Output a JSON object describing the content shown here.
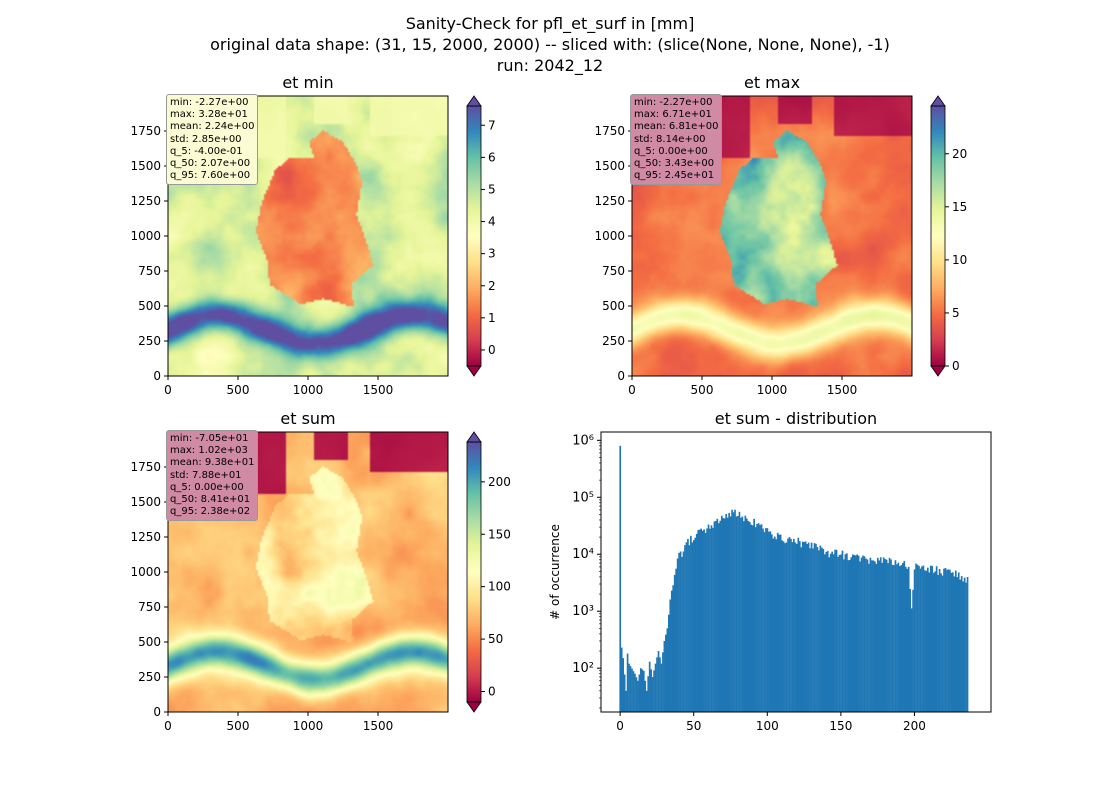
{
  "suptitle": {
    "line1": "Sanity-Check for pfl_et_surf in [mm]",
    "line2": "original data shape: (31, 15, 2000, 2000) -- sliced with: (slice(None, None, None), -1)",
    "line3": "run: 2042_12"
  },
  "colors": {
    "hist_bar": "#1f77b4",
    "stat_box_light": "#fbfbd4",
    "stat_box_pink": "#d08aa3",
    "cmap_spectral": [
      "#9e0142",
      "#d53e4f",
      "#f46d43",
      "#fdae61",
      "#fee08b",
      "#ffffbf",
      "#e6f598",
      "#abdda4",
      "#66c2a5",
      "#3288bd",
      "#5e4fa2"
    ]
  },
  "chart_data": [
    {
      "type": "heatmap",
      "title": "et min",
      "x_ticks": [
        "0",
        "500",
        "1000",
        "1500"
      ],
      "y_ticks": [
        "0",
        "250",
        "500",
        "750",
        "1000",
        "1250",
        "1500",
        "1750"
      ],
      "xlim": [
        0,
        2000
      ],
      "ylim": [
        0,
        2000
      ],
      "colorbar": {
        "ticks": [
          "0",
          "1",
          "2",
          "3",
          "4",
          "5",
          "6",
          "7"
        ],
        "range": [
          -0.5,
          7.6
        ],
        "extend": "both",
        "cmap": "Spectral"
      },
      "stats": [
        "min: -2.27e+00",
        "max: 3.28e+01",
        "mean: 2.24e+00",
        "std: 2.85e+00",
        "q_5: -4.00e-01",
        "q_50: 2.07e+00",
        "q_95: 7.60e+00"
      ]
    },
    {
      "type": "heatmap",
      "title": "et max",
      "x_ticks": [
        "0",
        "500",
        "1000",
        "1500"
      ],
      "y_ticks": [
        "0",
        "250",
        "500",
        "750",
        "1000",
        "1250",
        "1500",
        "1750"
      ],
      "xlim": [
        0,
        2000
      ],
      "ylim": [
        0,
        2000
      ],
      "colorbar": {
        "ticks": [
          "0",
          "5",
          "10",
          "15",
          "20"
        ],
        "range": [
          0,
          24.5
        ],
        "extend": "both",
        "cmap": "Spectral"
      },
      "stats": [
        "min: -2.27e+00",
        "max: 6.71e+01",
        "mean: 6.81e+00",
        "std: 8.14e+00",
        "q_5: 0.00e+00",
        "q_50: 3.43e+00",
        "q_95: 2.45e+01"
      ]
    },
    {
      "type": "heatmap",
      "title": "et sum",
      "x_ticks": [
        "0",
        "500",
        "1000",
        "1500"
      ],
      "y_ticks": [
        "0",
        "250",
        "500",
        "750",
        "1000",
        "1250",
        "1500",
        "1750"
      ],
      "xlim": [
        0,
        2000
      ],
      "ylim": [
        0,
        2000
      ],
      "colorbar": {
        "ticks": [
          "0",
          "50",
          "100",
          "150",
          "200"
        ],
        "range": [
          -10,
          238
        ],
        "extend": "both",
        "cmap": "Spectral"
      },
      "stats": [
        "min: -7.05e+01",
        "max: 1.02e+03",
        "mean: 9.38e+01",
        "std: 7.88e+01",
        "q_5: 0.00e+00",
        "q_50: 8.41e+01",
        "q_95: 2.38e+02"
      ]
    },
    {
      "type": "bar",
      "title": "et sum - distribution",
      "ylabel": "# of occurrence",
      "xlabel": "",
      "yscale": "log",
      "x_ticks": [
        "0",
        "50",
        "100",
        "150",
        "200"
      ],
      "y_ticks": [
        "10²",
        "10³",
        "10⁴",
        "10⁵",
        "10⁶"
      ],
      "xlim": [
        -13,
        252
      ],
      "ylim": [
        17,
        1400000
      ],
      "bin_width": 1,
      "keypoints": [
        [
          0,
          800000
        ],
        [
          1,
          230
        ],
        [
          2,
          150
        ],
        [
          4,
          40
        ],
        [
          5,
          180
        ],
        [
          6,
          120
        ],
        [
          10,
          80
        ],
        [
          12,
          60
        ],
        [
          14,
          100
        ],
        [
          16,
          90
        ],
        [
          18,
          40
        ],
        [
          20,
          130
        ],
        [
          22,
          70
        ],
        [
          24,
          120
        ],
        [
          26,
          200
        ],
        [
          28,
          120
        ],
        [
          30,
          300
        ],
        [
          32,
          500
        ],
        [
          34,
          1500
        ],
        [
          36,
          3000
        ],
        [
          38,
          6000
        ],
        [
          40,
          9000
        ],
        [
          43,
          12000
        ],
        [
          46,
          16000
        ],
        [
          50,
          20000
        ],
        [
          55,
          25000
        ],
        [
          60,
          30000
        ],
        [
          65,
          35000
        ],
        [
          70,
          42000
        ],
        [
          75,
          50000
        ],
        [
          78,
          55000
        ],
        [
          80,
          52000
        ],
        [
          85,
          44000
        ],
        [
          90,
          38000
        ],
        [
          95,
          30000
        ],
        [
          100,
          25000
        ],
        [
          110,
          19000
        ],
        [
          120,
          17000
        ],
        [
          130,
          14000
        ],
        [
          140,
          11000
        ],
        [
          150,
          10000
        ],
        [
          160,
          8500
        ],
        [
          170,
          8000
        ],
        [
          180,
          7500
        ],
        [
          190,
          7000
        ],
        [
          196,
          6000
        ],
        [
          198,
          1000
        ],
        [
          200,
          6000
        ],
        [
          210,
          5500
        ],
        [
          220,
          5000
        ],
        [
          230,
          4500
        ],
        [
          236,
          3500
        ]
      ]
    }
  ]
}
